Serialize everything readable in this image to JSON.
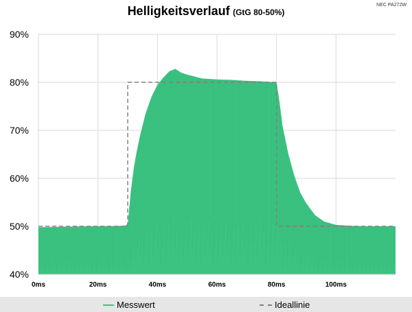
{
  "chart_data": {
    "type": "area",
    "title": "Helligkeitsverlauf",
    "subtitle": "(GtG 80-50%)",
    "corner_label": "NEC PA272W",
    "x_ticks": [
      "0ms",
      "20ms",
      "40ms",
      "60ms",
      "80ms",
      "100ms"
    ],
    "y_ticks": [
      "40%",
      "50%",
      "60%",
      "70%",
      "80%",
      "90%"
    ],
    "xlim": [
      0,
      120
    ],
    "ylim": [
      40,
      90
    ],
    "grid": true,
    "legend_position": "bottom",
    "series": [
      {
        "name": "Messwert",
        "color": "#3cc382",
        "envelope_x": [
          0,
          10,
          20,
          29,
          30,
          31,
          32,
          33,
          34,
          35,
          36,
          38,
          40,
          42,
          44,
          46,
          48,
          50,
          55,
          60,
          65,
          70,
          75,
          80,
          81,
          82,
          84,
          86,
          88,
          90,
          93,
          96,
          100,
          105,
          110,
          115,
          120
        ],
        "envelope_y": [
          49.8,
          49.9,
          50.0,
          50.1,
          50.5,
          57.0,
          62.0,
          65.5,
          68.5,
          71.0,
          73.5,
          77.0,
          79.5,
          81.0,
          82.3,
          82.8,
          82.0,
          81.6,
          80.8,
          80.6,
          80.5,
          80.3,
          80.2,
          80.0,
          76.0,
          71.0,
          65.0,
          60.5,
          57.0,
          54.8,
          52.3,
          51.0,
          50.3,
          50.1,
          50.0,
          50.0,
          50.0
        ]
      },
      {
        "name": "Ideallinie",
        "color": "#808080",
        "x": [
          0,
          30,
          30,
          80,
          80,
          120
        ],
        "y": [
          50,
          50,
          80,
          80,
          50,
          50
        ]
      }
    ]
  },
  "legend": {
    "measured": "Messwert",
    "ideal": "Ideallinie"
  }
}
